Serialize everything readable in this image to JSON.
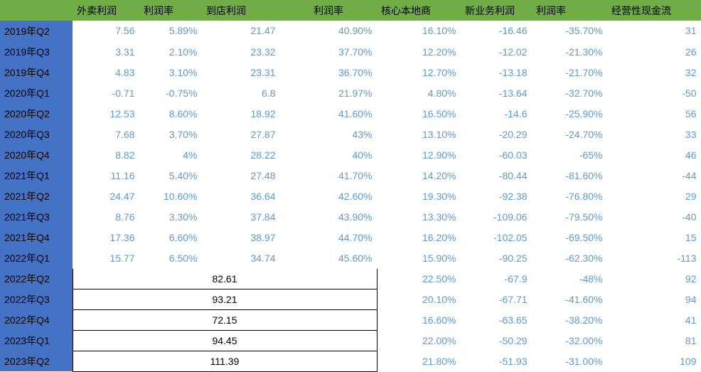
{
  "table": {
    "colors": {
      "header_bg": "#70ad47",
      "rowlabel_bg": "#4472c4",
      "cell_text": "#5b9bd5",
      "merged_border": "#000000",
      "merged_text": "#000000",
      "background": "#ffffff"
    },
    "headers": [
      "",
      "外卖利润",
      "利润率",
      "到店利润",
      "利润率",
      "核心本地商",
      "新业务利润",
      "利润率",
      "经营性现金流"
    ],
    "periods": [
      "2019年Q2",
      "2019年Q3",
      "2019年Q4",
      "2020年Q1",
      "2020年Q2",
      "2020年Q3",
      "2020年Q4",
      "2021年Q1",
      "2021年Q2",
      "2021年Q3",
      "2021年Q4",
      "2022年Q1",
      "2022年Q2",
      "2022年Q3",
      "2022年Q4",
      "2023年Q1",
      "2023年Q2"
    ],
    "rows_full": [
      [
        "7.56",
        "5.89%",
        "21.47",
        "40.90%",
        "16.10%",
        "-16.46",
        "-35.70%",
        "31"
      ],
      [
        "3.31",
        "2.10%",
        "23.32",
        "37.70%",
        "12.20%",
        "-12.02",
        "-21.30%",
        "26"
      ],
      [
        "4.83",
        "3.10%",
        "23.31",
        "36.70%",
        "12.70%",
        "-13.18",
        "-21.70%",
        "32"
      ],
      [
        "-0.71",
        "-0.75%",
        "6.8",
        "21.97%",
        "4.80%",
        "-13.64",
        "-32.70%",
        "-50"
      ],
      [
        "12.53",
        "8.60%",
        "18.92",
        "41.60%",
        "16.50%",
        "-14.6",
        "-25.90%",
        "56"
      ],
      [
        "7.68",
        "3.70%",
        "27.87",
        "43%",
        "13.10%",
        "-20.29",
        "-24.70%",
        "33"
      ],
      [
        "8.82",
        "4%",
        "28.22",
        "40%",
        "12.90%",
        "-60.03",
        "-65%",
        "46"
      ],
      [
        "11.16",
        "5.40%",
        "27.48",
        "41.70%",
        "14.20%",
        "-80.44",
        "-81.60%",
        "-44"
      ],
      [
        "24.47",
        "10.60%",
        "36.64",
        "42.60%",
        "19.30%",
        "-92.38",
        "-76.80%",
        "29"
      ],
      [
        "8.76",
        "3.30%",
        "37.84",
        "43.90%",
        "13.30%",
        "-109.06",
        "-79.50%",
        "-40"
      ],
      [
        "17.36",
        "6.60%",
        "38.97",
        "44.70%",
        "16.20%",
        "-102.05",
        "-69.50%",
        "15"
      ],
      [
        "15.77",
        "6.50%",
        "34.74",
        "45.60%",
        "15.90%",
        "-90.25",
        "-62.30%",
        "-113"
      ]
    ],
    "rows_merged": [
      {
        "merged": "82.61",
        "rest": [
          "22.50%",
          "-67.9",
          "-48%",
          "92"
        ]
      },
      {
        "merged": "93.21",
        "rest": [
          "20.10%",
          "-67.71",
          "-41.60%",
          "94"
        ]
      },
      {
        "merged": "72.15",
        "rest": [
          "16.60%",
          "-63.65",
          "-38.20%",
          "41"
        ]
      },
      {
        "merged": "94.45",
        "rest": [
          "22.00%",
          "-50.29",
          "-32.00%",
          "81"
        ]
      },
      {
        "merged": "111.39",
        "rest": [
          "21.80%",
          "-51.93",
          "-31.00%",
          "109"
        ]
      }
    ]
  }
}
